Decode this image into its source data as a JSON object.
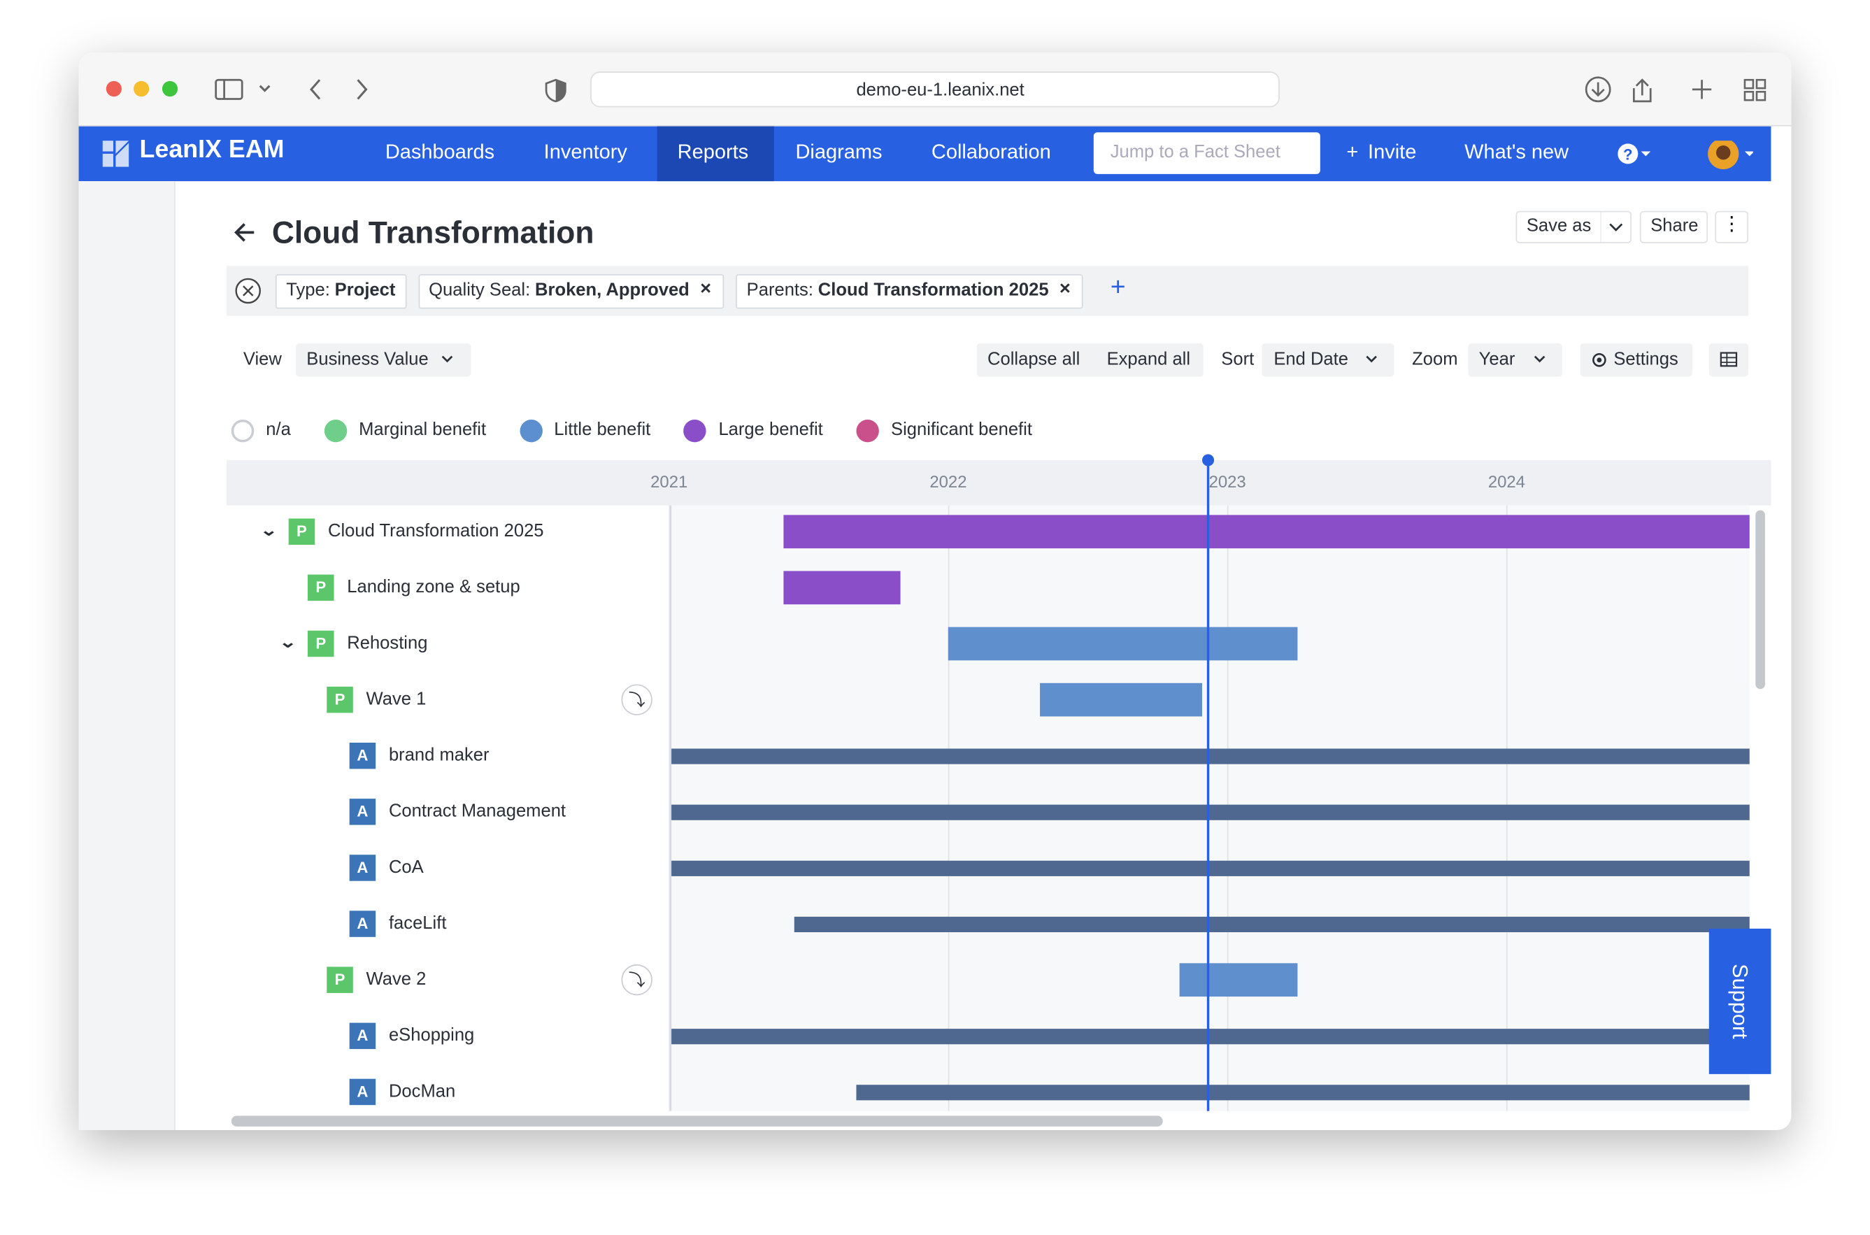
{
  "browser": {
    "url": "demo-eu-1.leanix.net"
  },
  "nav": {
    "brand": "LeanIX EAM",
    "items": [
      "Dashboards",
      "Inventory",
      "Reports",
      "Diagrams",
      "Collaboration"
    ],
    "active": 2,
    "search_placeholder": "Jump to a Fact Sheet",
    "invite": "Invite",
    "whats_new": "What's new"
  },
  "header": {
    "title": "Cloud Transformation",
    "save_as": "Save as",
    "share": "Share"
  },
  "filters": [
    {
      "label": "Type:",
      "value": "Project",
      "removable": false
    },
    {
      "label": "Quality Seal:",
      "value": "Broken, Approved",
      "removable": true
    },
    {
      "label": "Parents:",
      "value": "Cloud Transformation 2025",
      "removable": true
    }
  ],
  "toolbar": {
    "view_label": "View",
    "view": "Business Value",
    "collapse": "Collapse all",
    "expand": "Expand all",
    "sort_label": "Sort",
    "sort": "End Date",
    "zoom_label": "Zoom",
    "zoom": "Year",
    "settings": "Settings"
  },
  "legend": [
    {
      "name": "n/a",
      "color": null
    },
    {
      "name": "Marginal benefit",
      "color": "#6fcf8a"
    },
    {
      "name": "Little benefit",
      "color": "#5b8fd0"
    },
    {
      "name": "Large benefit",
      "color": "#8a4fc8"
    },
    {
      "name": "Significant benefit",
      "color": "#c9508a"
    }
  ],
  "timeline": {
    "xlim": [
      2021,
      2024.87
    ],
    "xticks": [
      2021,
      2022,
      2023,
      2024
    ],
    "today": 2022.93,
    "rows": [
      {
        "label": "Cloud Transformation 2025",
        "badge": "P",
        "depth": 0,
        "expanded": true,
        "start": 2021.41,
        "end": 2024.87,
        "color": "#8a4fc8"
      },
      {
        "label": "Landing zone & setup",
        "badge": "P",
        "depth": 1,
        "start": 2021.41,
        "end": 2021.83,
        "color": "#8a4fc8"
      },
      {
        "label": "Rehosting",
        "badge": "P",
        "depth": 1,
        "expanded": true,
        "start": 2022.0,
        "end": 2023.25,
        "color": "#5f8fcc"
      },
      {
        "label": "Wave 1",
        "badge": "P",
        "depth": 2,
        "drilldown": true,
        "start": 2022.33,
        "end": 2022.91,
        "color": "#5f8fcc"
      },
      {
        "label": "brand maker",
        "badge": "A",
        "depth": 3,
        "start": 2021.01,
        "end": 2024.87,
        "color": "#4e6890"
      },
      {
        "label": "Contract Management",
        "badge": "A",
        "depth": 3,
        "start": 2021.01,
        "end": 2024.87,
        "color": "#4e6890"
      },
      {
        "label": "CoA",
        "badge": "A",
        "depth": 3,
        "start": 2021.01,
        "end": 2024.87,
        "color": "#4e6890"
      },
      {
        "label": "faceLift",
        "badge": "A",
        "depth": 3,
        "start": 2021.45,
        "end": 2024.87,
        "color": "#4e6890"
      },
      {
        "label": "Wave 2",
        "badge": "P",
        "depth": 2,
        "drilldown": true,
        "start": 2022.83,
        "end": 2023.25,
        "color": "#5f8fcc"
      },
      {
        "label": "eShopping",
        "badge": "A",
        "depth": 3,
        "start": 2021.01,
        "end": 2024.87,
        "color": "#4e6890"
      },
      {
        "label": "DocMan",
        "badge": "A",
        "depth": 3,
        "start": 2021.67,
        "end": 2024.87,
        "color": "#4e6890"
      }
    ]
  },
  "support": "Support"
}
